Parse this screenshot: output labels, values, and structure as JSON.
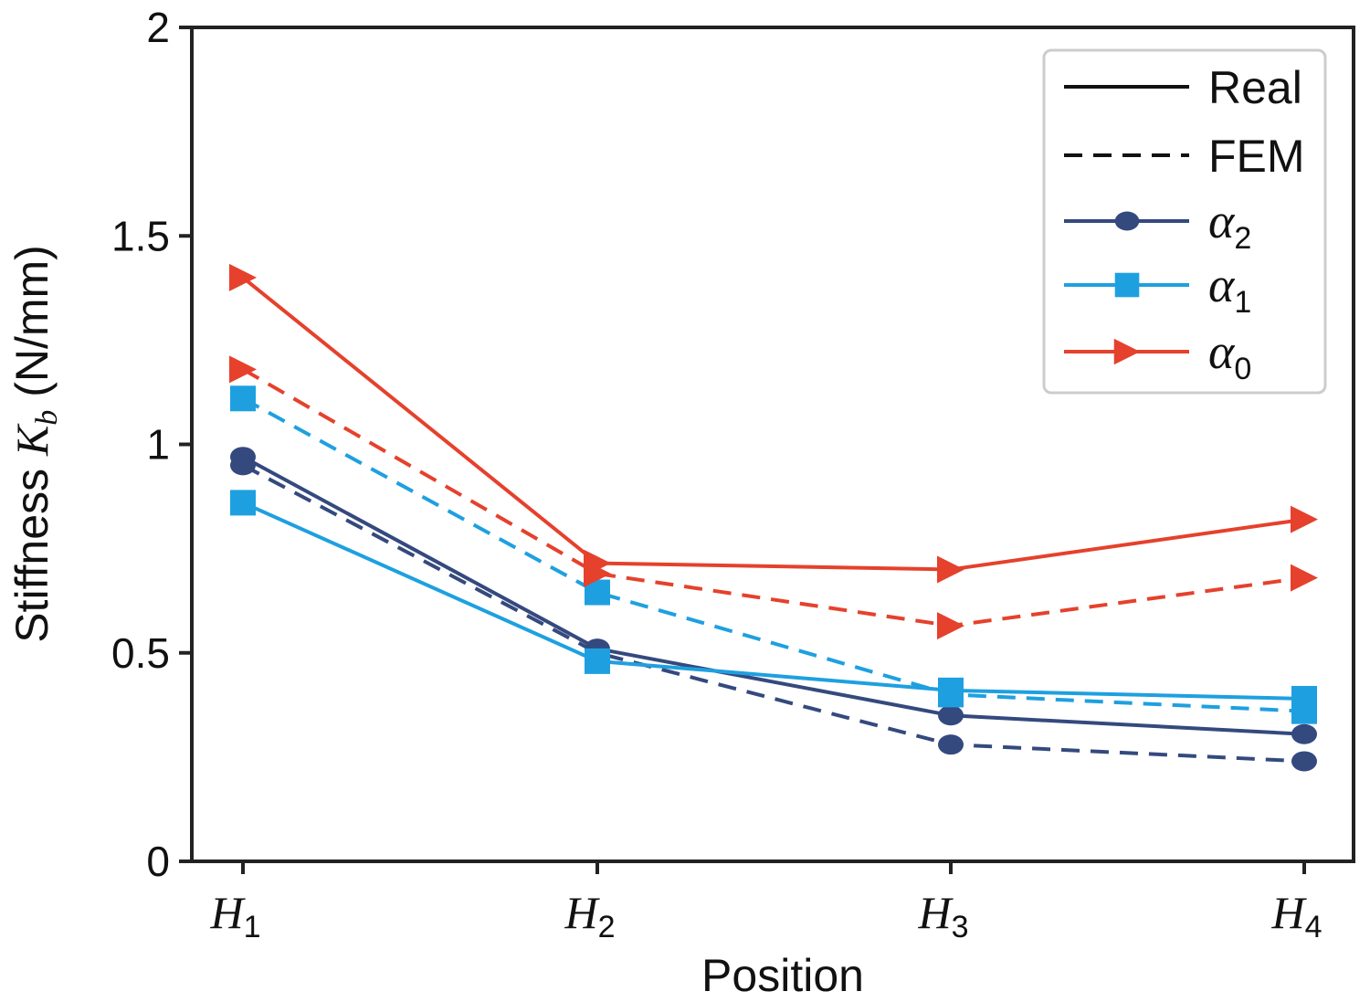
{
  "chart_data": {
    "type": "line",
    "title": "",
    "xlabel": "Position",
    "ylabel": {
      "prefix": "Stiffness ",
      "symbol": "K",
      "subscript": "b",
      "suffix": " (N/mm)"
    },
    "categories": [
      {
        "base": "H",
        "sub": "1"
      },
      {
        "base": "H",
        "sub": "2"
      },
      {
        "base": "H",
        "sub": "3"
      },
      {
        "base": "H",
        "sub": "4"
      }
    ],
    "ylim": [
      0,
      2
    ],
    "yticks": [
      "0",
      "0.5",
      "1",
      "1.5",
      "2"
    ],
    "grid": false,
    "legend_position": "top-right",
    "legend": [
      {
        "label": "Real",
        "style": "solid"
      },
      {
        "label": "FEM",
        "style": "dashed"
      },
      {
        "base": "α",
        "sub": "2",
        "color": "#34497e",
        "marker": "circle"
      },
      {
        "base": "α",
        "sub": "1",
        "color": "#1ea0e0",
        "marker": "square"
      },
      {
        "base": "α",
        "sub": "0",
        "color": "#e5412c",
        "marker": "triangle-right"
      }
    ],
    "series": [
      {
        "group": "α2",
        "method": "Real",
        "color": "#34497e",
        "marker": "circle",
        "dash": false,
        "values": [
          0.97,
          0.51,
          0.35,
          0.305
        ]
      },
      {
        "group": "α2",
        "method": "FEM",
        "color": "#34497e",
        "marker": "circle",
        "dash": true,
        "values": [
          0.95,
          0.5,
          0.28,
          0.24
        ]
      },
      {
        "group": "α1",
        "method": "Real",
        "color": "#1ea0e0",
        "marker": "square",
        "dash": false,
        "values": [
          0.86,
          0.48,
          0.41,
          0.39
        ]
      },
      {
        "group": "α1",
        "method": "FEM",
        "color": "#1ea0e0",
        "marker": "square",
        "dash": true,
        "values": [
          1.11,
          0.645,
          0.4,
          0.36
        ]
      },
      {
        "group": "α0",
        "method": "Real",
        "color": "#e5412c",
        "marker": "triangle-right",
        "dash": false,
        "values": [
          1.4,
          0.715,
          0.7,
          0.82
        ]
      },
      {
        "group": "α0",
        "method": "FEM",
        "color": "#e5412c",
        "marker": "triangle-right",
        "dash": true,
        "values": [
          1.18,
          0.69,
          0.565,
          0.68
        ]
      }
    ]
  }
}
